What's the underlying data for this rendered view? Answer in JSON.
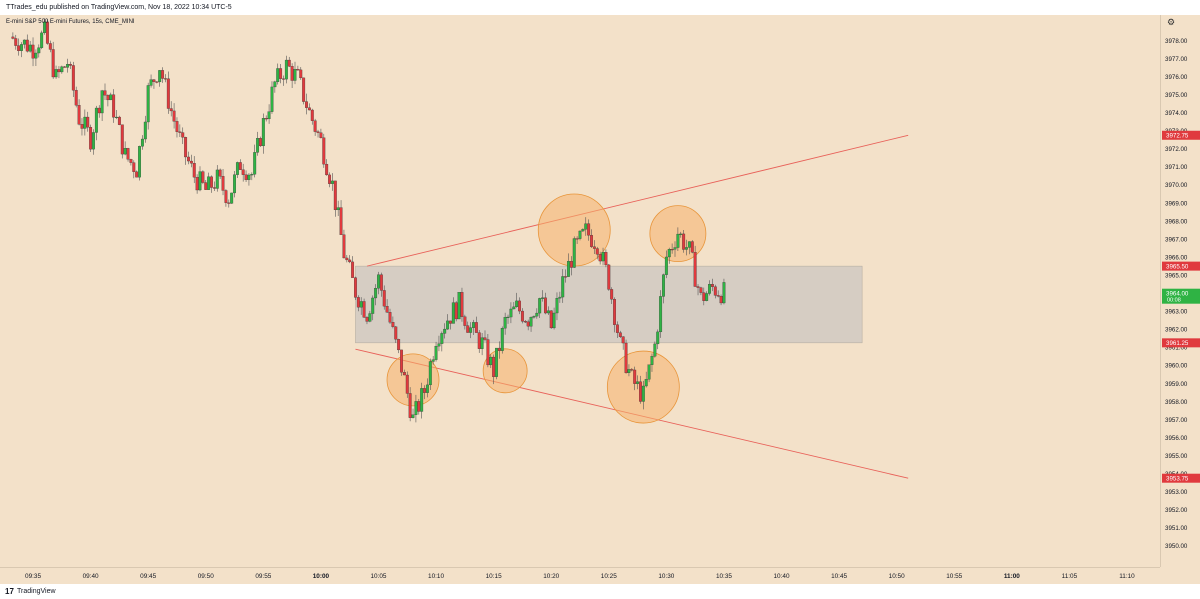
{
  "header": {
    "text": "TTrades_edu published on TradingView.com, Nov 18, 2022 10:34 UTC-5"
  },
  "symbol": {
    "label": "E-mini S&P 500 E-mini Futures, 15s, CME_MINI"
  },
  "icons": {
    "settings": "gear-icon"
  },
  "price_axis": {
    "ticks": [
      "3978.00",
      "3977.00",
      "3976.00",
      "3975.00",
      "3974.00",
      "3973.00",
      "3972.00",
      "3971.00",
      "3970.00",
      "3969.00",
      "3968.00",
      "3967.00",
      "3966.00",
      "3965.00",
      "3964.00",
      "3963.00",
      "3962.00",
      "3961.00",
      "3960.00",
      "3959.00",
      "3958.00",
      "3957.00",
      "3956.00",
      "3955.00",
      "3954.00",
      "3953.00",
      "3952.00",
      "3951.00",
      "3950.00"
    ],
    "badges": [
      {
        "label": "3972.75",
        "color": "#e03a3e"
      },
      {
        "label": "3965.50",
        "color": "#e03a3e"
      },
      {
        "label": "3964.00",
        "sub": "00:08",
        "color": "#2fb344"
      },
      {
        "label": "3961.25",
        "color": "#e03a3e"
      },
      {
        "label": "3953.75",
        "color": "#e03a3e"
      }
    ]
  },
  "time_axis": {
    "ticks": [
      "09:35",
      "09:40",
      "09:45",
      "09:50",
      "09:55",
      "10:00",
      "10:05",
      "10:10",
      "10:15",
      "10:20",
      "10:25",
      "10:30",
      "10:35",
      "10:40",
      "10:45",
      "10:50",
      "10:55",
      "11:00",
      "11:05",
      "11:10"
    ],
    "bold": [
      "10:00",
      "11:00"
    ]
  },
  "colors": {
    "up": "#2fb344",
    "down": "#e03a3e",
    "wick": "#555555",
    "box": "#bdbdbd",
    "circle": "#f5b26b",
    "trend": "#e8625a"
  },
  "footer": {
    "logo": "17",
    "text": "TradingView"
  },
  "chart_data": {
    "type": "candlestick",
    "symbol": "E-mini S&P 500 E-mini Futures, 15s, CME_MINI",
    "x_range": [
      "09:33",
      "11:12"
    ],
    "ylim": [
      3950,
      3979
    ],
    "close_path": [
      [
        "09:33",
        3978.2
      ],
      [
        "09:35",
        3977.6
      ],
      [
        "09:36",
        3978.4
      ],
      [
        "09:37",
        3975.9
      ],
      [
        "09:38",
        3976.8
      ],
      [
        "09:39",
        3973.7
      ],
      [
        "09:40",
        3972.6
      ],
      [
        "09:41",
        3975.3
      ],
      [
        "09:42",
        3974.2
      ],
      [
        "09:43",
        3971.6
      ],
      [
        "09:44",
        3970.9
      ],
      [
        "09:45",
        3975.2
      ],
      [
        "09:46",
        3976.6
      ],
      [
        "09:47",
        3974.1
      ],
      [
        "09:48",
        3972.0
      ],
      [
        "09:49",
        3970.5
      ],
      [
        "09:50",
        3969.7
      ],
      [
        "09:51",
        3970.3
      ],
      [
        "09:52",
        3969.3
      ],
      [
        "09:53",
        3971.2
      ],
      [
        "09:54",
        3970.6
      ],
      [
        "09:55",
        3973.4
      ],
      [
        "09:56",
        3975.6
      ],
      [
        "09:57",
        3976.6
      ],
      [
        "09:58",
        3975.9
      ],
      [
        "09:59",
        3974.0
      ],
      [
        "10:00",
        3972.4
      ],
      [
        "10:01",
        3970.0
      ],
      [
        "10:02",
        3966.2
      ],
      [
        "10:03",
        3964.1
      ],
      [
        "10:04",
        3962.9
      ],
      [
        "10:05",
        3964.8
      ],
      [
        "10:06",
        3962.4
      ],
      [
        "10:07",
        3959.9
      ],
      [
        "10:08",
        3957.0
      ],
      [
        "10:09",
        3958.6
      ],
      [
        "10:10",
        3961.6
      ],
      [
        "10:11",
        3962.6
      ],
      [
        "10:12",
        3963.4
      ],
      [
        "10:13",
        3962.0
      ],
      [
        "10:14",
        3961.2
      ],
      [
        "10:15",
        3959.7
      ],
      [
        "10:16",
        3962.4
      ],
      [
        "10:17",
        3963.2
      ],
      [
        "10:18",
        3962.6
      ],
      [
        "10:19",
        3963.7
      ],
      [
        "10:20",
        3962.1
      ],
      [
        "10:21",
        3964.6
      ],
      [
        "10:22",
        3966.4
      ],
      [
        "10:23",
        3967.4
      ],
      [
        "10:24",
        3966.8
      ],
      [
        "10:25",
        3964.7
      ],
      [
        "10:26",
        3961.1
      ],
      [
        "10:27",
        3959.2
      ],
      [
        "10:28",
        3958.3
      ],
      [
        "10:29",
        3961.1
      ],
      [
        "10:30",
        3966.0
      ],
      [
        "10:31",
        3967.4
      ],
      [
        "10:32",
        3966.3
      ],
      [
        "10:33",
        3963.7
      ],
      [
        "10:34",
        3964.3
      ],
      [
        "10:35",
        3964.0
      ]
    ],
    "annotations": {
      "range_box": {
        "time": [
          "10:03",
          "10:47"
        ],
        "price": [
          3961.25,
          3965.5
        ]
      },
      "upper_trendline": {
        "from": [
          "10:04",
          3965.5
        ],
        "to": [
          "10:51",
          3972.75
        ]
      },
      "lower_trendline": {
        "from": [
          "10:03",
          3960.9
        ],
        "to": [
          "10:51",
          3953.75
        ]
      },
      "circles": [
        {
          "time": "10:08",
          "price": 3959.2
        },
        {
          "time": "10:16",
          "price": 3959.7
        },
        {
          "time": "10:22",
          "price": 3967.5
        },
        {
          "time": "10:28",
          "price": 3958.8
        },
        {
          "time": "10:31",
          "price": 3967.3
        }
      ]
    }
  }
}
